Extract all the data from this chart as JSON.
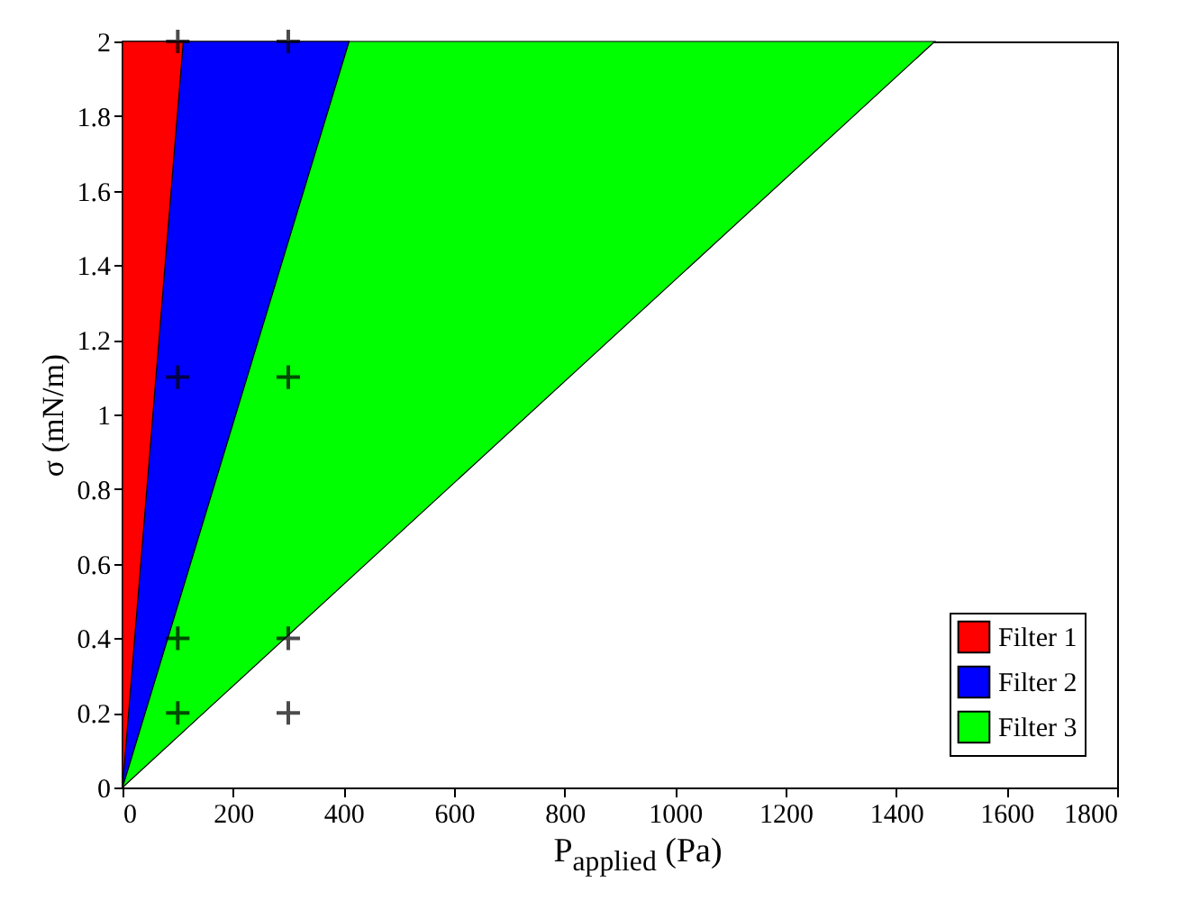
{
  "chart_data": {
    "type": "area",
    "xlabel": "P$_{applied}$ (Pa)",
    "ylabel": "σ (mN/m)",
    "xlim": [
      0,
      1800
    ],
    "xticks": [
      0,
      200,
      400,
      600,
      800,
      1000,
      1200,
      1400,
      1600,
      1800
    ],
    "ylim": [
      0,
      2
    ],
    "yticks": [
      0,
      0.2,
      0.4,
      0.6,
      0.8,
      1,
      1.2,
      1.4,
      1.6,
      1.8,
      2
    ],
    "legend": "bottom right",
    "series": [
      {
        "name": "Filter 1",
        "color": "#ff0000",
        "x": [
          0,
          110
        ],
        "values": [
          0,
          2
        ]
      },
      {
        "name": "Filter 2",
        "color": "#0000ff",
        "x": [
          0,
          410
        ],
        "values": [
          0,
          2
        ]
      },
      {
        "name": "Filter 3",
        "color": "#00ff00",
        "x": [
          0,
          1470
        ],
        "values": [
          0,
          2
        ]
      },
      {
        "type": "scatter",
        "color": "#000000",
        "marker": "cross",
        "x": [
          100,
          300,
          100,
          300,
          100,
          300,
          100,
          300
        ],
        "values": [
          2,
          2,
          1.1,
          1.1,
          0.4,
          0.4,
          0.2,
          0.2
        ]
      }
    ]
  }
}
